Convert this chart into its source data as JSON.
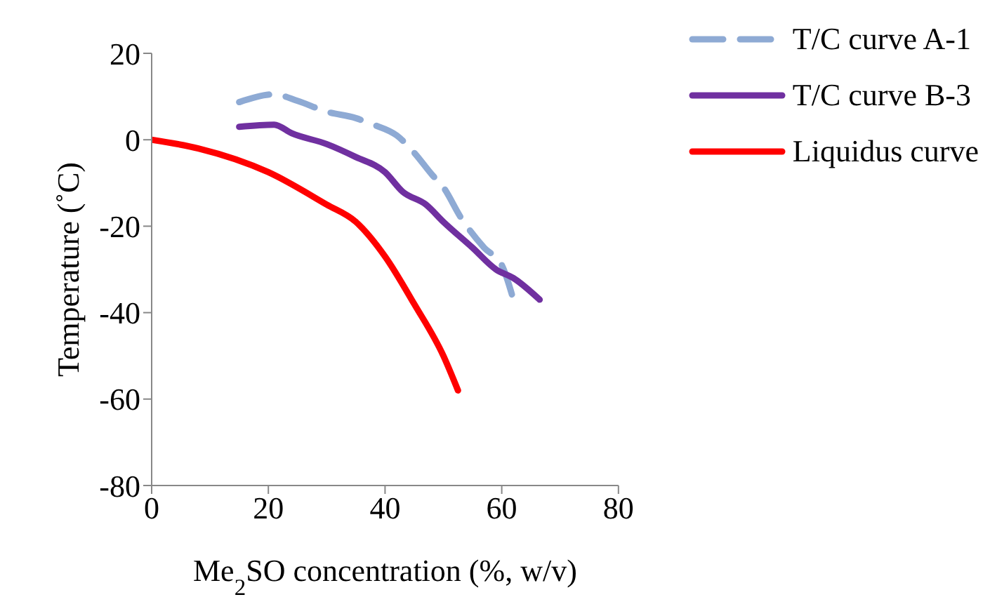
{
  "chart_data": {
    "type": "line",
    "xlabel": "Me$_{2}$SO concentration (%, w/v)",
    "ylabel": "Temperature (˚C)",
    "xlim": [
      0,
      80
    ],
    "xticks": [
      0,
      20,
      40,
      60,
      80
    ],
    "ylim": [
      -80,
      20
    ],
    "yticks": [
      -80,
      -60,
      -40,
      -20,
      0,
      20
    ],
    "grid": false,
    "legend": "top right",
    "marker": "none",
    "series": [
      {
        "name": "T/C curve A-1",
        "color": "#8eaad4",
        "line_style": "dashed",
        "x": [
          15,
          21,
          25,
          30,
          35,
          38,
          42,
          45,
          48,
          50,
          53,
          57,
          60,
          62
        ],
        "values": [
          8.7,
          10.5,
          9,
          6.5,
          5,
          3.5,
          1,
          -3,
          -8,
          -11,
          -18,
          -25,
          -29,
          -37
        ]
      },
      {
        "name": "T/C curve B-3",
        "color": "#7030a0",
        "line_style": "solid",
        "x": [
          15,
          21,
          24,
          30,
          35,
          40,
          43,
          47,
          50,
          55,
          59,
          62,
          66.5
        ],
        "values": [
          3,
          3.5,
          1.5,
          -1,
          -4,
          -7.5,
          -12,
          -15,
          -19,
          -25,
          -30,
          -32,
          -37
        ]
      },
      {
        "name": "Liquidus curve",
        "color": "#ff0000",
        "line_style": "solid",
        "x": [
          0,
          8,
          20,
          30,
          35,
          40,
          45,
          50,
          52.5
        ],
        "values": [
          0,
          -2,
          -7.5,
          -15,
          -19,
          -27,
          -38,
          -50,
          -58
        ]
      }
    ]
  }
}
